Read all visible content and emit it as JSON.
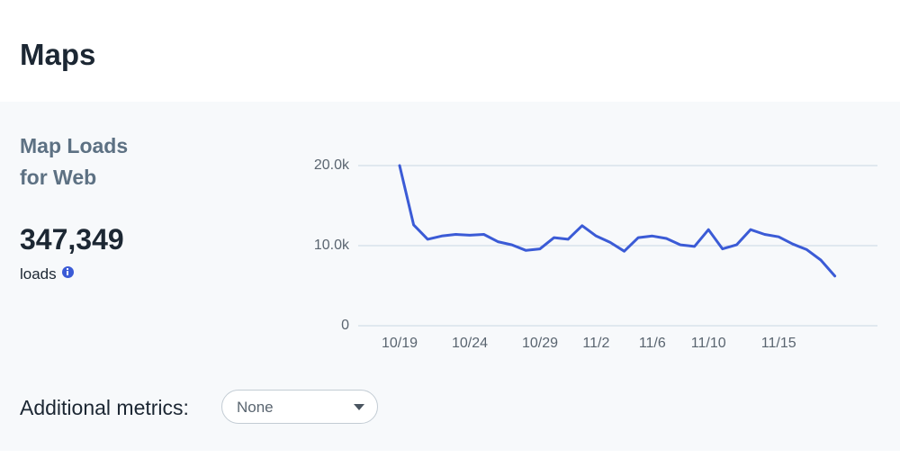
{
  "header": {
    "title": "Maps"
  },
  "card": {
    "title_lines": [
      "Map Loads",
      "for Web"
    ],
    "total": "347,349",
    "unit": "loads"
  },
  "chart_data": {
    "type": "line",
    "categories": [
      "10/19",
      null,
      null,
      null,
      null,
      "10/24",
      null,
      null,
      null,
      null,
      "10/29",
      null,
      null,
      null,
      "11/2",
      null,
      null,
      null,
      "11/6",
      null,
      null,
      null,
      "11/10",
      null,
      null,
      null,
      null,
      "11/15",
      null,
      null,
      null,
      null
    ],
    "values": [
      20000,
      12600,
      10800,
      11200,
      11400,
      11300,
      11400,
      10500,
      10100,
      9400,
      9600,
      11000,
      10800,
      12500,
      11200,
      10400,
      9300,
      11000,
      11200,
      10900,
      10100,
      9900,
      12000,
      9600,
      10100,
      12000,
      11400,
      11100,
      10200,
      9500,
      8200,
      6200
    ],
    "color": "#3b5bd6",
    "ylim": [
      0,
      20000
    ],
    "yticks": [
      0,
      {
        "value": 10000,
        "label": "10.0k"
      },
      {
        "value": 20000,
        "label": "20.0k"
      }
    ],
    "grid": true
  },
  "metrics": {
    "label": "Additional metrics:",
    "dropdown": "None"
  }
}
